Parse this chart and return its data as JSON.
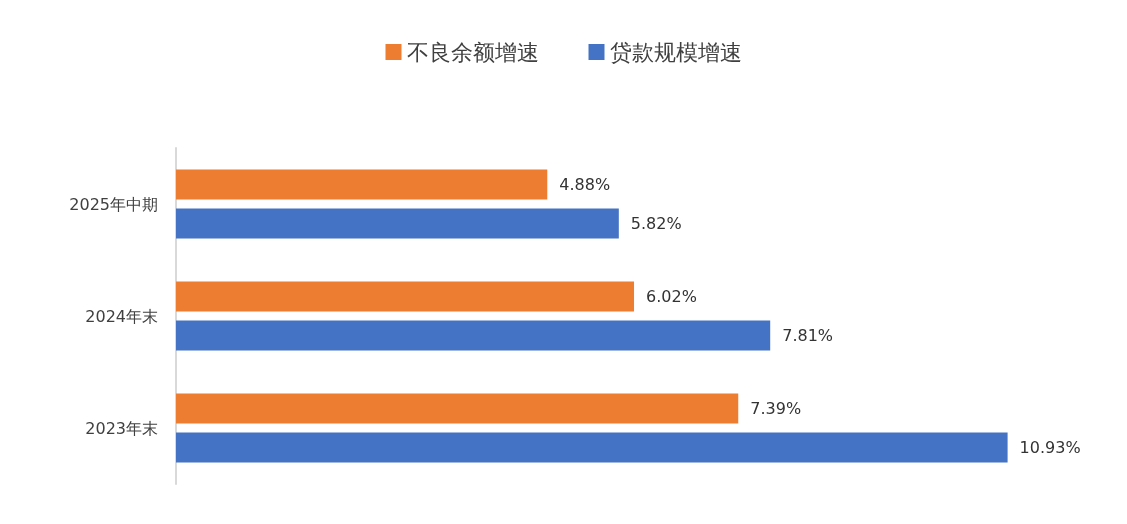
{
  "chart_data": {
    "type": "bar",
    "orientation": "horizontal",
    "categories": [
      "2025年中期",
      "2024年末",
      "2023年末"
    ],
    "series": [
      {
        "name": "不良余额增速",
        "color": "#ed7d31",
        "values": [
          4.88,
          6.02,
          7.39
        ],
        "value_labels": [
          "4.88%",
          "6.02%",
          "7.39%"
        ]
      },
      {
        "name": "贷款规模增速",
        "color": "#4472c4",
        "values": [
          5.82,
          7.81,
          10.93
        ],
        "value_labels": [
          "5.82%",
          "7.81%",
          "10.93%"
        ]
      }
    ],
    "legend": "top"
  }
}
